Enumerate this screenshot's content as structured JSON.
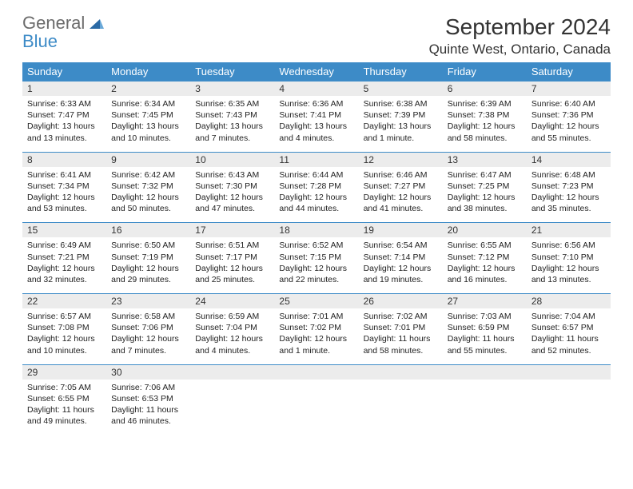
{
  "logo": {
    "text1": "General",
    "text2": "Blue"
  },
  "title": "September 2024",
  "location": "Quinte West, Ontario, Canada",
  "colors": {
    "header_bg": "#3d8bc7",
    "daynum_bg": "#ececec",
    "cell_border": "#3d8bc7",
    "text": "#222222",
    "logo_gray": "#6b6b6b"
  },
  "dow": [
    "Sunday",
    "Monday",
    "Tuesday",
    "Wednesday",
    "Thursday",
    "Friday",
    "Saturday"
  ],
  "weeks": [
    [
      {
        "n": "1",
        "sunrise": "6:33 AM",
        "sunset": "7:47 PM",
        "daylight": "13 hours and 13 minutes."
      },
      {
        "n": "2",
        "sunrise": "6:34 AM",
        "sunset": "7:45 PM",
        "daylight": "13 hours and 10 minutes."
      },
      {
        "n": "3",
        "sunrise": "6:35 AM",
        "sunset": "7:43 PM",
        "daylight": "13 hours and 7 minutes."
      },
      {
        "n": "4",
        "sunrise": "6:36 AM",
        "sunset": "7:41 PM",
        "daylight": "13 hours and 4 minutes."
      },
      {
        "n": "5",
        "sunrise": "6:38 AM",
        "sunset": "7:39 PM",
        "daylight": "13 hours and 1 minute."
      },
      {
        "n": "6",
        "sunrise": "6:39 AM",
        "sunset": "7:38 PM",
        "daylight": "12 hours and 58 minutes."
      },
      {
        "n": "7",
        "sunrise": "6:40 AM",
        "sunset": "7:36 PM",
        "daylight": "12 hours and 55 minutes."
      }
    ],
    [
      {
        "n": "8",
        "sunrise": "6:41 AM",
        "sunset": "7:34 PM",
        "daylight": "12 hours and 53 minutes."
      },
      {
        "n": "9",
        "sunrise": "6:42 AM",
        "sunset": "7:32 PM",
        "daylight": "12 hours and 50 minutes."
      },
      {
        "n": "10",
        "sunrise": "6:43 AM",
        "sunset": "7:30 PM",
        "daylight": "12 hours and 47 minutes."
      },
      {
        "n": "11",
        "sunrise": "6:44 AM",
        "sunset": "7:28 PM",
        "daylight": "12 hours and 44 minutes."
      },
      {
        "n": "12",
        "sunrise": "6:46 AM",
        "sunset": "7:27 PM",
        "daylight": "12 hours and 41 minutes."
      },
      {
        "n": "13",
        "sunrise": "6:47 AM",
        "sunset": "7:25 PM",
        "daylight": "12 hours and 38 minutes."
      },
      {
        "n": "14",
        "sunrise": "6:48 AM",
        "sunset": "7:23 PM",
        "daylight": "12 hours and 35 minutes."
      }
    ],
    [
      {
        "n": "15",
        "sunrise": "6:49 AM",
        "sunset": "7:21 PM",
        "daylight": "12 hours and 32 minutes."
      },
      {
        "n": "16",
        "sunrise": "6:50 AM",
        "sunset": "7:19 PM",
        "daylight": "12 hours and 29 minutes."
      },
      {
        "n": "17",
        "sunrise": "6:51 AM",
        "sunset": "7:17 PM",
        "daylight": "12 hours and 25 minutes."
      },
      {
        "n": "18",
        "sunrise": "6:52 AM",
        "sunset": "7:15 PM",
        "daylight": "12 hours and 22 minutes."
      },
      {
        "n": "19",
        "sunrise": "6:54 AM",
        "sunset": "7:14 PM",
        "daylight": "12 hours and 19 minutes."
      },
      {
        "n": "20",
        "sunrise": "6:55 AM",
        "sunset": "7:12 PM",
        "daylight": "12 hours and 16 minutes."
      },
      {
        "n": "21",
        "sunrise": "6:56 AM",
        "sunset": "7:10 PM",
        "daylight": "12 hours and 13 minutes."
      }
    ],
    [
      {
        "n": "22",
        "sunrise": "6:57 AM",
        "sunset": "7:08 PM",
        "daylight": "12 hours and 10 minutes."
      },
      {
        "n": "23",
        "sunrise": "6:58 AM",
        "sunset": "7:06 PM",
        "daylight": "12 hours and 7 minutes."
      },
      {
        "n": "24",
        "sunrise": "6:59 AM",
        "sunset": "7:04 PM",
        "daylight": "12 hours and 4 minutes."
      },
      {
        "n": "25",
        "sunrise": "7:01 AM",
        "sunset": "7:02 PM",
        "daylight": "12 hours and 1 minute."
      },
      {
        "n": "26",
        "sunrise": "7:02 AM",
        "sunset": "7:01 PM",
        "daylight": "11 hours and 58 minutes."
      },
      {
        "n": "27",
        "sunrise": "7:03 AM",
        "sunset": "6:59 PM",
        "daylight": "11 hours and 55 minutes."
      },
      {
        "n": "28",
        "sunrise": "7:04 AM",
        "sunset": "6:57 PM",
        "daylight": "11 hours and 52 minutes."
      }
    ],
    [
      {
        "n": "29",
        "sunrise": "7:05 AM",
        "sunset": "6:55 PM",
        "daylight": "11 hours and 49 minutes."
      },
      {
        "n": "30",
        "sunrise": "7:06 AM",
        "sunset": "6:53 PM",
        "daylight": "11 hours and 46 minutes."
      },
      {
        "empty": true
      },
      {
        "empty": true
      },
      {
        "empty": true
      },
      {
        "empty": true
      },
      {
        "empty": true
      }
    ]
  ],
  "labels": {
    "sunrise": "Sunrise:",
    "sunset": "Sunset:",
    "daylight": "Daylight:"
  }
}
